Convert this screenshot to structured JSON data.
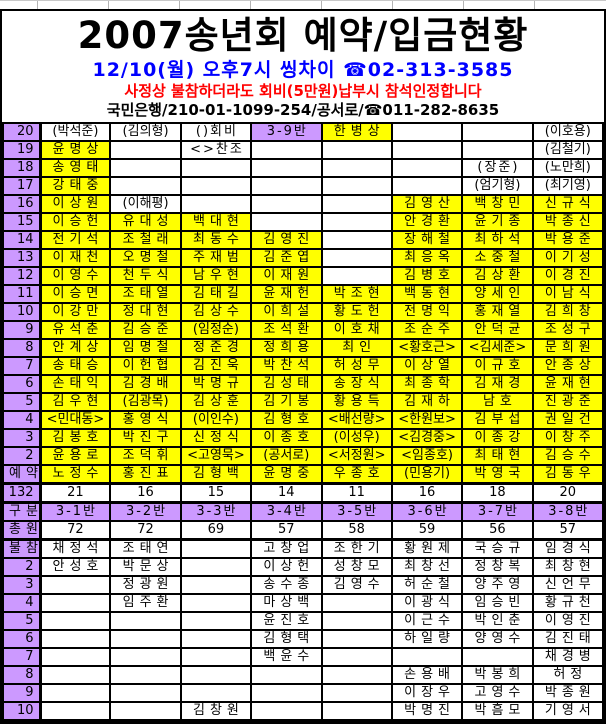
{
  "header": {
    "title": "2007송년회  예약/입금현황",
    "schedule": "12/10(월)  오후7시  씽차이  ☎02-313-3585",
    "notice": "사정상 불참하더라도 회비(5만원)납부시 참석인정합니다",
    "bank": "국민은행/210-01-1099-254/공서로/☎011-282-8635"
  },
  "colors": {
    "label_purple": "#CC99FF",
    "cell_yellow": "#FFFF00",
    "schedule_blue": "#0000FF",
    "notice_red": "#FF0000",
    "border_black": "#000000"
  },
  "grid": {
    "bg_legend": {
      "w": "white",
      "y": "yellow",
      "p": "purple"
    },
    "rows": [
      {
        "label": "20",
        "cells": [
          [
            "(박석준)",
            "w"
          ],
          [
            "(김의형)",
            "w"
          ],
          [
            "()회비",
            "w"
          ],
          [
            "3-9반",
            "p"
          ],
          [
            "한병상",
            "y"
          ],
          [
            "",
            "w"
          ],
          [
            "",
            "w"
          ],
          [
            "(이호용)",
            "w"
          ]
        ]
      },
      {
        "label": "19",
        "cells": [
          [
            "윤명상",
            "y"
          ],
          [
            "",
            "w"
          ],
          [
            "<>찬조",
            "w"
          ],
          [
            "",
            "w"
          ],
          [
            "",
            "w"
          ],
          [
            "",
            "w"
          ],
          [
            "",
            "w"
          ],
          [
            "(김철기)",
            "w"
          ]
        ]
      },
      {
        "label": "18",
        "cells": [
          [
            "송영태",
            "y"
          ],
          [
            "",
            "w"
          ],
          [
            "",
            "w"
          ],
          [
            "",
            "w"
          ],
          [
            "",
            "w"
          ],
          [
            "",
            "w"
          ],
          [
            "(장준)",
            "w"
          ],
          [
            "(노만희)",
            "w"
          ]
        ]
      },
      {
        "label": "17",
        "cells": [
          [
            "강태중",
            "y"
          ],
          [
            "",
            "w"
          ],
          [
            "",
            "w"
          ],
          [
            "",
            "w"
          ],
          [
            "",
            "w"
          ],
          [
            "",
            "w"
          ],
          [
            "(엄기형)",
            "w"
          ],
          [
            "(최기영)",
            "w"
          ]
        ]
      },
      {
        "label": "16",
        "cells": [
          [
            "이상원",
            "y"
          ],
          [
            "(이해평)",
            "w"
          ],
          [
            "",
            "w"
          ],
          [
            "",
            "w"
          ],
          [
            "",
            "w"
          ],
          [
            "김영산",
            "y"
          ],
          [
            "백창민",
            "y"
          ],
          [
            "신규식",
            "y"
          ]
        ]
      },
      {
        "label": "15",
        "cells": [
          [
            "이승헌",
            "y"
          ],
          [
            "유대성",
            "y"
          ],
          [
            "백대현",
            "y"
          ],
          [
            "",
            "w"
          ],
          [
            "",
            "w"
          ],
          [
            "안경환",
            "y"
          ],
          [
            "윤기종",
            "y"
          ],
          [
            "박종신",
            "y"
          ]
        ]
      },
      {
        "label": "14",
        "cells": [
          [
            "전기석",
            "y"
          ],
          [
            "조철래",
            "y"
          ],
          [
            "최동수",
            "y"
          ],
          [
            "김영진",
            "y"
          ],
          [
            "",
            "w"
          ],
          [
            "장해철",
            "y"
          ],
          [
            "최하석",
            "y"
          ],
          [
            "박용준",
            "y"
          ]
        ]
      },
      {
        "label": "13",
        "cells": [
          [
            "이재천",
            "y"
          ],
          [
            "오명철",
            "y"
          ],
          [
            "주재범",
            "y"
          ],
          [
            "김준엽",
            "y"
          ],
          [
            "",
            "w"
          ],
          [
            "최응옥",
            "y"
          ],
          [
            "소중철",
            "y"
          ],
          [
            "이기성",
            "y"
          ]
        ]
      },
      {
        "label": "12",
        "cells": [
          [
            "이영수",
            "y"
          ],
          [
            "천두식",
            "y"
          ],
          [
            "남우현",
            "y"
          ],
          [
            "이재원",
            "y"
          ],
          [
            "",
            "w"
          ],
          [
            "김병호",
            "y"
          ],
          [
            "김상환",
            "y"
          ],
          [
            "이경진",
            "y"
          ]
        ]
      },
      {
        "label": "11",
        "cells": [
          [
            "이승면",
            "y"
          ],
          [
            "조태열",
            "y"
          ],
          [
            "김태길",
            "y"
          ],
          [
            "윤재헌",
            "y"
          ],
          [
            "박조현",
            "y"
          ],
          [
            "백동현",
            "y"
          ],
          [
            "양세인",
            "y"
          ],
          [
            "이남식",
            "y"
          ]
        ]
      },
      {
        "label": "10",
        "cells": [
          [
            "이강만",
            "y"
          ],
          [
            "정대현",
            "y"
          ],
          [
            "김상수",
            "y"
          ],
          [
            "이희설",
            "y"
          ],
          [
            "황도헌",
            "y"
          ],
          [
            "전명익",
            "y"
          ],
          [
            "홍재열",
            "y"
          ],
          [
            "김희창",
            "y"
          ]
        ]
      },
      {
        "label": "9",
        "cells": [
          [
            "유석춘",
            "y"
          ],
          [
            "김승준",
            "y"
          ],
          [
            "(임정순)",
            "y"
          ],
          [
            "조석환",
            "y"
          ],
          [
            "이호채",
            "y"
          ],
          [
            "조순주",
            "y"
          ],
          [
            "안덕균",
            "y"
          ],
          [
            "조성구",
            "y"
          ]
        ]
      },
      {
        "label": "8",
        "cells": [
          [
            "안계상",
            "y"
          ],
          [
            "임명철",
            "y"
          ],
          [
            "정준경",
            "y"
          ],
          [
            "정희용",
            "y"
          ],
          [
            "최인",
            "y"
          ],
          [
            "<황호근>",
            "y"
          ],
          [
            "<김세준>",
            "y"
          ],
          [
            "문희원",
            "y"
          ]
        ]
      },
      {
        "label": "7",
        "cells": [
          [
            "송태승",
            "y"
          ],
          [
            "이헌협",
            "y"
          ],
          [
            "김진욱",
            "y"
          ],
          [
            "박찬석",
            "y"
          ],
          [
            "허성무",
            "y"
          ],
          [
            "이상열",
            "y"
          ],
          [
            "이규호",
            "y"
          ],
          [
            "안종상",
            "y"
          ]
        ]
      },
      {
        "label": "6",
        "cells": [
          [
            "손태익",
            "y"
          ],
          [
            "김경배",
            "y"
          ],
          [
            "박명규",
            "y"
          ],
          [
            "김성태",
            "y"
          ],
          [
            "송장식",
            "y"
          ],
          [
            "최종학",
            "y"
          ],
          [
            "김재경",
            "y"
          ],
          [
            "윤재현",
            "y"
          ]
        ]
      },
      {
        "label": "5",
        "cells": [
          [
            "김우현",
            "y"
          ],
          [
            "(김광목)",
            "y"
          ],
          [
            "김상훈",
            "y"
          ],
          [
            "김기봉",
            "y"
          ],
          [
            "황용득",
            "y"
          ],
          [
            "김재하",
            "y"
          ],
          [
            "남호",
            "y"
          ],
          [
            "진광준",
            "y"
          ]
        ]
      },
      {
        "label": "4",
        "cells": [
          [
            "<민대동>",
            "y"
          ],
          [
            "홍영식",
            "y"
          ],
          [
            "(이인수)",
            "y"
          ],
          [
            "김형호",
            "y"
          ],
          [
            "<배선량>",
            "y"
          ],
          [
            "<한원보>",
            "y"
          ],
          [
            "김부섭",
            "y"
          ],
          [
            "권일건",
            "y"
          ]
        ]
      },
      {
        "label": "3",
        "cells": [
          [
            "김봉호",
            "y"
          ],
          [
            "박진구",
            "y"
          ],
          [
            "신정식",
            "y"
          ],
          [
            "이종호",
            "y"
          ],
          [
            "(이성우)",
            "y"
          ],
          [
            "<김경중>",
            "y"
          ],
          [
            "이종강",
            "y"
          ],
          [
            "이창주",
            "y"
          ]
        ]
      },
      {
        "label": "2",
        "cells": [
          [
            "윤용로",
            "y"
          ],
          [
            "조덕휘",
            "y"
          ],
          [
            "<고영묵>",
            "y"
          ],
          [
            "(공서로)",
            "y"
          ],
          [
            "<서정원>",
            "y"
          ],
          [
            "<임종호)",
            "y"
          ],
          [
            "최태현",
            "y"
          ],
          [
            "김승수",
            "y"
          ]
        ]
      },
      {
        "label": "예약",
        "cells": [
          [
            "노정수",
            "y"
          ],
          [
            "홍진표",
            "y"
          ],
          [
            "김형백",
            "y"
          ],
          [
            "윤명중",
            "y"
          ],
          [
            "우종호",
            "y"
          ],
          [
            "(민용기)",
            "y"
          ],
          [
            "박영국",
            "y"
          ],
          [
            "김동우",
            "y"
          ]
        ]
      },
      {
        "label": "132",
        "thick": true,
        "cells": [
          [
            "21",
            "w"
          ],
          [
            "16",
            "w"
          ],
          [
            "15",
            "w"
          ],
          [
            "14",
            "w"
          ],
          [
            "11",
            "w"
          ],
          [
            "16",
            "w"
          ],
          [
            "18",
            "w"
          ],
          [
            "20",
            "w"
          ]
        ]
      },
      {
        "label": "구분",
        "thick": true,
        "cells": [
          [
            "3-1반",
            "p"
          ],
          [
            "3-2반",
            "p"
          ],
          [
            "3-3반",
            "p"
          ],
          [
            "3-4반",
            "p"
          ],
          [
            "3-5반",
            "p"
          ],
          [
            "3-6반",
            "p"
          ],
          [
            "3-7반",
            "p"
          ],
          [
            "3-8반",
            "p"
          ]
        ]
      },
      {
        "label": "총원",
        "cells": [
          [
            "72",
            "w"
          ],
          [
            "72",
            "w"
          ],
          [
            "69",
            "w"
          ],
          [
            "57",
            "w"
          ],
          [
            "58",
            "w"
          ],
          [
            "59",
            "w"
          ],
          [
            "56",
            "w"
          ],
          [
            "57",
            "w"
          ]
        ]
      },
      {
        "label": "불참",
        "thick": true,
        "cells": [
          [
            "채정석",
            "w"
          ],
          [
            "조태연",
            "w"
          ],
          [
            "",
            "w"
          ],
          [
            "고창업",
            "w"
          ],
          [
            "조한기",
            "w"
          ],
          [
            "황원제",
            "w"
          ],
          [
            "국승규",
            "w"
          ],
          [
            "임경식",
            "w"
          ]
        ]
      },
      {
        "label": "2",
        "cells": [
          [
            "안성호",
            "w"
          ],
          [
            "박문상",
            "w"
          ],
          [
            "",
            "w"
          ],
          [
            "이상헌",
            "w"
          ],
          [
            "성창모",
            "w"
          ],
          [
            "최창선",
            "w"
          ],
          [
            "정창복",
            "w"
          ],
          [
            "최창현",
            "w"
          ]
        ]
      },
      {
        "label": "3",
        "cells": [
          [
            "",
            "w"
          ],
          [
            "정광원",
            "w"
          ],
          [
            "",
            "w"
          ],
          [
            "송수종",
            "w"
          ],
          [
            "김영수",
            "w"
          ],
          [
            "허순철",
            "w"
          ],
          [
            "양주영",
            "w"
          ],
          [
            "신언무",
            "w"
          ]
        ]
      },
      {
        "label": "4",
        "cells": [
          [
            "",
            "w"
          ],
          [
            "임주환",
            "w"
          ],
          [
            "",
            "w"
          ],
          [
            "마상백",
            "w"
          ],
          [
            "",
            "w"
          ],
          [
            "이광식",
            "w"
          ],
          [
            "임승빈",
            "w"
          ],
          [
            "황규천",
            "w"
          ]
        ]
      },
      {
        "label": "5",
        "cells": [
          [
            "",
            "w"
          ],
          [
            "",
            "w"
          ],
          [
            "",
            "w"
          ],
          [
            "윤진호",
            "w"
          ],
          [
            "",
            "w"
          ],
          [
            "이근수",
            "w"
          ],
          [
            "박인춘",
            "w"
          ],
          [
            "이영진",
            "w"
          ]
        ]
      },
      {
        "label": "6",
        "cells": [
          [
            "",
            "w"
          ],
          [
            "",
            "w"
          ],
          [
            "",
            "w"
          ],
          [
            "김형택",
            "w"
          ],
          [
            "",
            "w"
          ],
          [
            "하일량",
            "w"
          ],
          [
            "양영수",
            "w"
          ],
          [
            "김진태",
            "w"
          ]
        ]
      },
      {
        "label": "7",
        "cells": [
          [
            "",
            "w"
          ],
          [
            "",
            "w"
          ],
          [
            "",
            "w"
          ],
          [
            "백윤수",
            "w"
          ],
          [
            "",
            "w"
          ],
          [
            "",
            "w"
          ],
          [
            "",
            "w"
          ],
          [
            "채경병",
            "w"
          ]
        ]
      },
      {
        "label": "8",
        "cells": [
          [
            "",
            "w"
          ],
          [
            "",
            "w"
          ],
          [
            "",
            "w"
          ],
          [
            "",
            "w"
          ],
          [
            "",
            "w"
          ],
          [
            "손용배",
            "w"
          ],
          [
            "박봉희",
            "w"
          ],
          [
            "허정",
            "w"
          ]
        ]
      },
      {
        "label": "9",
        "cells": [
          [
            "",
            "w"
          ],
          [
            "",
            "w"
          ],
          [
            "",
            "w"
          ],
          [
            "",
            "w"
          ],
          [
            "",
            "w"
          ],
          [
            "이장우",
            "w"
          ],
          [
            "고영수",
            "w"
          ],
          [
            "박종원",
            "w"
          ]
        ]
      },
      {
        "label": "10",
        "cells": [
          [
            "",
            "w"
          ],
          [
            "",
            "w"
          ],
          [
            "김창원",
            "w"
          ],
          [
            "",
            "w"
          ],
          [
            "",
            "w"
          ],
          [
            "박명진",
            "w"
          ],
          [
            "박흠모",
            "w"
          ],
          [
            "기영서",
            "w"
          ]
        ]
      }
    ]
  }
}
